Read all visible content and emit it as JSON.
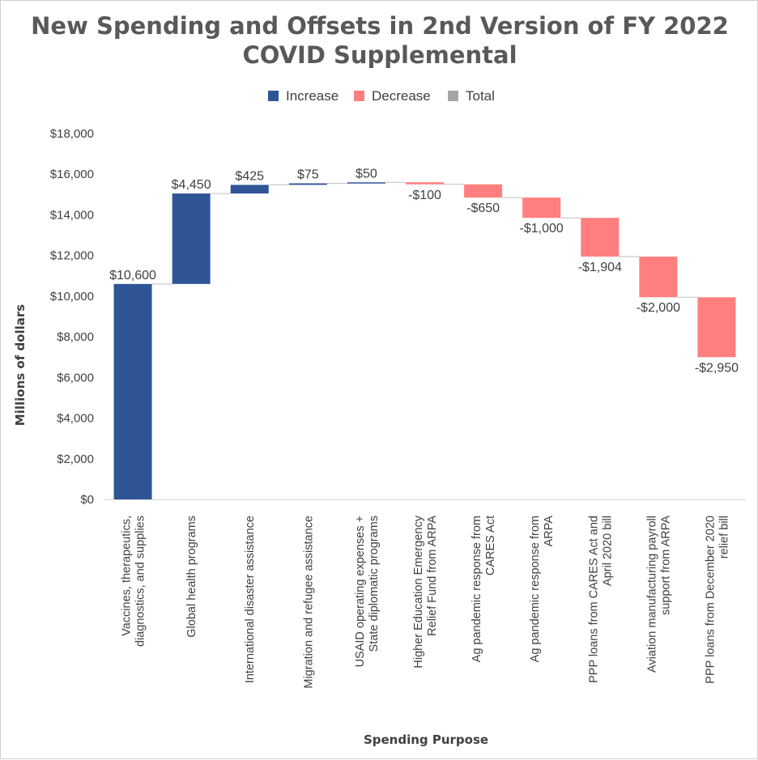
{
  "chart_data": {
    "type": "waterfall",
    "title_lines": [
      "New Spending and Offsets in 2nd Version of FY 2022",
      "COVID Supplemental"
    ],
    "xlabel": "Spending Purpose",
    "ylabel": "Millions of dollars",
    "ylim": [
      0,
      18000
    ],
    "yticks": [
      0,
      2000,
      4000,
      6000,
      8000,
      10000,
      12000,
      14000,
      16000,
      18000
    ],
    "ytick_labels": [
      "$0",
      "$2,000",
      "$4,000",
      "$6,000",
      "$8,000",
      "$10,000",
      "$12,000",
      "$14,000",
      "$16,000",
      "$18,000"
    ],
    "grid": false,
    "legend_position": "top",
    "legend": [
      {
        "name": "Increase",
        "color": "#2f5597"
      },
      {
        "name": "Decrease",
        "color": "#ff7f7f"
      },
      {
        "name": "Total",
        "color": "#a5a5a5"
      }
    ],
    "categories": [
      [
        "Vaccines, therapeutics,",
        "diagnostics, and supplies"
      ],
      [
        "Global health programs"
      ],
      [
        "International disaster assistance"
      ],
      [
        "Migration and refugee assistance"
      ],
      [
        "USAID operating expenses +",
        "State diplomatic programs"
      ],
      [
        "Higher Education Emergency",
        "Relief Fund from ARPA"
      ],
      [
        "Ag pandemic response from",
        "CARES Act"
      ],
      [
        "Ag pandemic response from",
        "ARPA"
      ],
      [
        "PPP loans from CARES Act and",
        "April 2020 bill"
      ],
      [
        "Aviation manufacturing payroll",
        "support from ARPA"
      ],
      [
        "PPP loans from December 2020",
        "relief bill"
      ]
    ],
    "values": [
      10600,
      4450,
      425,
      75,
      50,
      -100,
      -650,
      -1000,
      -1904,
      -2000,
      -2950
    ],
    "data_labels": [
      "$10,600",
      "$4,450",
      "$425",
      "$75",
      "$50",
      "-$100",
      "-$650",
      "-$1,000",
      "-$1,904",
      "-$2,000",
      "-$2,950"
    ]
  }
}
